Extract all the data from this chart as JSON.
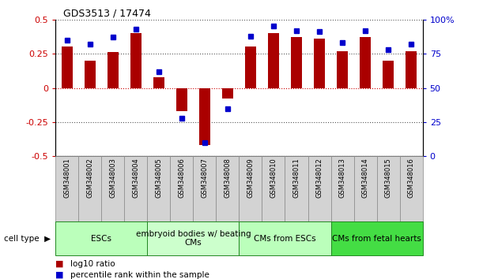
{
  "title": "GDS3513 / 17474",
  "samples": [
    "GSM348001",
    "GSM348002",
    "GSM348003",
    "GSM348004",
    "GSM348005",
    "GSM348006",
    "GSM348007",
    "GSM348008",
    "GSM348009",
    "GSM348010",
    "GSM348011",
    "GSM348012",
    "GSM348013",
    "GSM348014",
    "GSM348015",
    "GSM348016"
  ],
  "log10_ratio": [
    0.3,
    0.2,
    0.26,
    0.4,
    0.08,
    -0.17,
    -0.42,
    -0.08,
    0.3,
    0.4,
    0.37,
    0.36,
    0.27,
    0.37,
    0.2,
    0.27
  ],
  "percentile_rank": [
    85,
    82,
    87,
    93,
    62,
    28,
    10,
    35,
    88,
    95,
    92,
    91,
    83,
    92,
    78,
    82
  ],
  "bar_color": "#aa0000",
  "dot_color": "#0000cc",
  "ylim_left": [
    -0.5,
    0.5
  ],
  "ylim_right": [
    0,
    100
  ],
  "yticks_left": [
    -0.5,
    -0.25,
    0,
    0.25,
    0.5
  ],
  "yticks_right": [
    0,
    25,
    50,
    75,
    100
  ],
  "ytick_right_labels": [
    "0",
    "25",
    "50",
    "75",
    "100%"
  ],
  "ytick_left_labels": [
    "-0.5",
    "-0.25",
    "0",
    "0.25",
    "0.5"
  ],
  "cell_type_groups": [
    {
      "label": "ESCs",
      "start": 0,
      "end": 4,
      "color": "#bbffbb"
    },
    {
      "label": "embryoid bodies w/ beating\nCMs",
      "start": 4,
      "end": 8,
      "color": "#ccffcc"
    },
    {
      "label": "CMs from ESCs",
      "start": 8,
      "end": 12,
      "color": "#bbffbb"
    },
    {
      "label": "CMs from fetal hearts",
      "start": 12,
      "end": 16,
      "color": "#44dd44"
    }
  ],
  "legend_bar_label": "log10 ratio",
  "legend_dot_label": "percentile rank within the sample",
  "cell_type_label": "cell type"
}
